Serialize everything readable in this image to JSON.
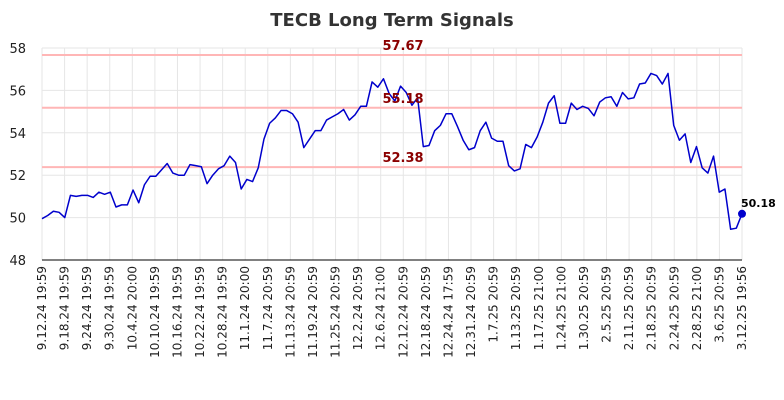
{
  "chart_data": {
    "type": "line",
    "title": "TECB Long Term Signals",
    "xlabel": "",
    "ylabel": "",
    "ylim": [
      48,
      58
    ],
    "yticks": [
      48,
      50,
      52,
      54,
      56,
      58
    ],
    "grid": true,
    "xtick_labels": [
      "9.12.24 19:59",
      "9.18.24 19:59",
      "9.24.24 19:59",
      "9.30.24 19:59",
      "10.4.24 20:00",
      "10.10.24 19:59",
      "10.16.24 19:59",
      "10.22.24 19:59",
      "10.28.24 19:59",
      "11.1.24 20:00",
      "11.7.24 20:59",
      "11.13.24 20:59",
      "11.19.24 20:59",
      "11.25.24 20:59",
      "12.2.24 20:59",
      "12.6.24 21:00",
      "12.12.24 20:59",
      "12.18.24 20:59",
      "12.24.24 17:59",
      "12.31.24 20:59",
      "1.7.25 20:59",
      "1.13.25 20:59",
      "1.17.25 21:00",
      "1.24.25 21:00",
      "1.30.25 20:59",
      "2.5.25 20:59",
      "2.11.25 20:59",
      "2.18.25 20:59",
      "2.24.25 20:59",
      "2.28.25 21:00",
      "3.6.25 20:59",
      "3.12.25 19:56"
    ],
    "series": [
      {
        "color": "#0000cc",
        "values": [
          49.95,
          50.1,
          50.3,
          50.25,
          50.0,
          51.05,
          51.0,
          51.05,
          51.05,
          50.95,
          51.2,
          51.1,
          51.2,
          50.5,
          50.6,
          50.6,
          51.3,
          50.7,
          51.55,
          51.95,
          51.95,
          52.25,
          52.55,
          52.1,
          52.0,
          52.0,
          52.5,
          52.45,
          52.4,
          51.6,
          52.0,
          52.3,
          52.45,
          52.9,
          52.6,
          51.35,
          51.8,
          51.7,
          52.35,
          53.7,
          54.45,
          54.7,
          55.05,
          55.05,
          54.9,
          54.5,
          53.3,
          53.7,
          54.1,
          54.1,
          54.6,
          54.75,
          54.9,
          55.1,
          54.6,
          54.85,
          55.25,
          55.25,
          56.4,
          56.15,
          56.55,
          55.85,
          55.5,
          56.2,
          55.9,
          55.3,
          55.65,
          53.35,
          53.4,
          54.1,
          54.35,
          54.9,
          54.9,
          54.3,
          53.65,
          53.2,
          53.3,
          54.1,
          54.5,
          53.75,
          53.6,
          53.6,
          52.45,
          52.2,
          52.3,
          53.45,
          53.3,
          53.8,
          54.5,
          55.4,
          55.75,
          54.45,
          54.45,
          55.4,
          55.1,
          55.25,
          55.15,
          54.8,
          55.45,
          55.65,
          55.7,
          55.25,
          55.9,
          55.6,
          55.65,
          56.3,
          56.35,
          56.8,
          56.7,
          56.3,
          56.8,
          54.35,
          53.65,
          53.95,
          52.6,
          53.35,
          52.35,
          52.1,
          52.9,
          51.2,
          51.35,
          49.45,
          49.5,
          50.18
        ]
      }
    ],
    "hlines": [
      {
        "value": 57.67,
        "label": "57.67"
      },
      {
        "value": 55.18,
        "label": "55.18"
      },
      {
        "value": 52.38,
        "label": "52.38"
      }
    ],
    "hline_color": "#ffb6b6",
    "last_point": {
      "value": 50.18,
      "label": "50.18"
    }
  }
}
